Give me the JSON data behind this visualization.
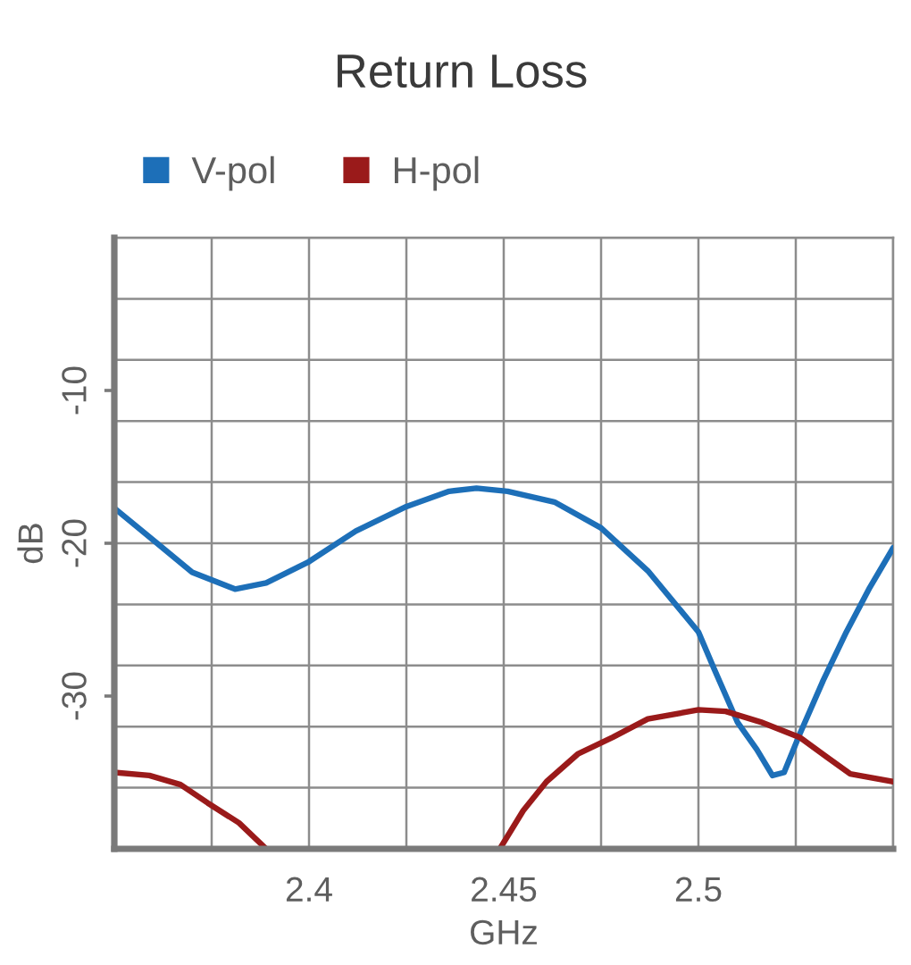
{
  "chart_data": {
    "type": "line",
    "title": "Return Loss",
    "xlabel": "GHz",
    "ylabel": "dB",
    "xlim": [
      2.35,
      2.55
    ],
    "ylim": [
      -40,
      0
    ],
    "xticks": [
      {
        "value": 2.35,
        "label": null
      },
      {
        "value": 2.375,
        "label": null
      },
      {
        "value": 2.4,
        "label": null
      },
      {
        "value": 2.425,
        "label": null
      },
      {
        "value": 2.45,
        "label": null
      },
      {
        "value": 2.475,
        "label": null
      },
      {
        "value": 2.5,
        "label": null
      },
      {
        "value": 2.525,
        "label": null
      },
      {
        "value": 2.55,
        "label": null
      },
      2.4,
      2.45,
      2.5
    ],
    "yticks": [
      {
        "value": -40,
        "label": null
      },
      {
        "value": -36,
        "label": null
      },
      {
        "value": -32,
        "label": null
      },
      {
        "value": -28,
        "label": null
      },
      {
        "value": -24,
        "label": null
      },
      {
        "value": -20,
        "label": null
      },
      {
        "value": -16,
        "label": null
      },
      {
        "value": -12,
        "label": null
      },
      {
        "value": -8,
        "label": null
      },
      {
        "value": -4,
        "label": null
      },
      {
        "value": 0,
        "label": null
      },
      -30,
      -20,
      -10
    ],
    "grid": true,
    "legend": "top left",
    "series": [
      {
        "name": "V-pol",
        "color": "#1d6fb8",
        "x": [
          2.35,
          2.36,
          2.37,
          2.381,
          2.389,
          2.4,
          2.412,
          2.425,
          2.436,
          2.443,
          2.451,
          2.463,
          2.475,
          2.487,
          2.5,
          2.504,
          2.51,
          2.515,
          2.519,
          2.522,
          2.526,
          2.532,
          2.538,
          2.544,
          2.55
        ],
        "values": [
          -17.7,
          -19.8,
          -21.9,
          -23.0,
          -22.6,
          -21.2,
          -19.2,
          -17.6,
          -16.6,
          -16.4,
          -16.6,
          -17.3,
          -19.0,
          -21.8,
          -25.8,
          -28.2,
          -31.7,
          -33.5,
          -35.2,
          -35.0,
          -32.5,
          -29.0,
          -25.8,
          -22.9,
          -20.3
        ]
      },
      {
        "name": "H-pol",
        "color": "#9a1a1a",
        "x": [
          2.35,
          2.359,
          2.367,
          2.374,
          2.382,
          2.389,
          2.42,
          2.449,
          2.455,
          2.461,
          2.469,
          2.478,
          2.487,
          2.5,
          2.507,
          2.516,
          2.526,
          2.533,
          2.539,
          2.55
        ],
        "values": [
          -35.0,
          -35.2,
          -35.8,
          -37.0,
          -38.3,
          -40,
          null,
          -40,
          -37.5,
          -35.6,
          -33.8,
          -32.7,
          -31.5,
          -30.9,
          -31.0,
          -31.7,
          -32.7,
          -34.0,
          -35.1,
          -35.6
        ]
      }
    ]
  }
}
